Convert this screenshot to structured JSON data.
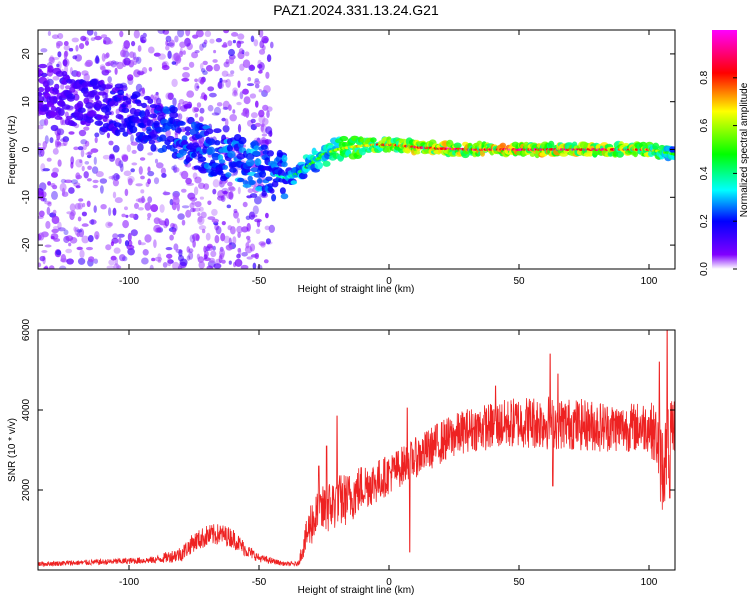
{
  "title": "PAZ1.2024.331.13.24.G21",
  "chart_data": [
    {
      "type": "heatmap",
      "xlabel": "Height of straight line (km)",
      "ylabel": "Frequency (Hz)",
      "xlim": [
        -135,
        110
      ],
      "ylim": [
        -25,
        25
      ],
      "x_ticks": [
        -100,
        -50,
        0,
        50,
        100
      ],
      "y_ticks": [
        -20,
        -10,
        0,
        10,
        20
      ],
      "colorbar": {
        "label": "Normalized spectral amplitude",
        "range": [
          0,
          1
        ],
        "ticks": [
          0.0,
          0.2,
          0.4,
          0.6,
          0.8
        ],
        "colors": [
          "#ffffff",
          "#8000ff",
          "#0000ff",
          "#00ffff",
          "#00ff00",
          "#ffff00",
          "#ff0000",
          "#ff00ff"
        ]
      },
      "ridge": {
        "x": [
          -135,
          -120,
          -100,
          -90,
          -80,
          -70,
          -60,
          -50,
          -45,
          -40,
          -35,
          -30,
          -25,
          -20,
          -15,
          -10,
          -5,
          0,
          5,
          10,
          20,
          30,
          40,
          50,
          60,
          70,
          80,
          90,
          100,
          105,
          110
        ],
        "y": [
          13,
          10,
          8,
          5,
          3,
          0,
          -2,
          -4,
          -5,
          -6,
          -5,
          -3,
          -1,
          0,
          0.5,
          0.8,
          1,
          1,
          0.8,
          0.5,
          0.2,
          0,
          0,
          0,
          0,
          0,
          0,
          0,
          0,
          -0.5,
          -1
        ],
        "amplitude": [
          0.15,
          0.2,
          0.25,
          0.3,
          0.35,
          0.35,
          0.4,
          0.4,
          0.35,
          0.4,
          0.45,
          0.5,
          0.55,
          0.6,
          0.7,
          0.75,
          0.8,
          0.85,
          0.85,
          0.9,
          0.9,
          0.95,
          0.95,
          0.98,
          0.95,
          0.95,
          0.95,
          0.9,
          0.85,
          0.6,
          0.5
        ]
      },
      "scatter_region": {
        "x_range": [
          -135,
          -45
        ],
        "y_range": [
          -25,
          25
        ]
      }
    },
    {
      "type": "line",
      "xlabel": "Height of straight line (km)",
      "ylabel": "SNR (10 * v/v)",
      "xlim": [
        -135,
        110
      ],
      "ylim": [
        0,
        6000
      ],
      "x_ticks": [
        -100,
        -50,
        0,
        50,
        100
      ],
      "y_ticks": [
        2000,
        4000,
        6000
      ],
      "color": "#ee2222",
      "envelope": {
        "x": [
          -135,
          -110,
          -90,
          -80,
          -75,
          -70,
          -65,
          -60,
          -55,
          -50,
          -40,
          -35,
          -30,
          -25,
          -20,
          -15,
          -10,
          -5,
          0,
          10,
          20,
          30,
          40,
          50,
          60,
          70,
          80,
          90,
          100,
          103,
          105,
          107,
          110
        ],
        "y": [
          150,
          200,
          250,
          400,
          700,
          850,
          900,
          800,
          500,
          300,
          150,
          150,
          1200,
          1500,
          1700,
          1800,
          2100,
          2200,
          2400,
          2800,
          3200,
          3500,
          3600,
          3700,
          3700,
          3650,
          3600,
          3550,
          3600,
          3300,
          2500,
          3000,
          3700
        ]
      },
      "noise": {
        "x": [
          -135,
          -110,
          -90,
          -80,
          -70,
          -60,
          -50,
          -40,
          -35,
          -30,
          -20,
          -10,
          0,
          10,
          20,
          30,
          40,
          50,
          60,
          70,
          80,
          90,
          100,
          103,
          105,
          110
        ],
        "y": [
          60,
          70,
          90,
          200,
          280,
          250,
          100,
          50,
          60,
          600,
          700,
          600,
          500,
          500,
          550,
          550,
          600,
          650,
          700,
          650,
          650,
          600,
          650,
          800,
          1200,
          700
        ]
      },
      "spikes": [
        {
          "x": -20,
          "y": 3850
        },
        {
          "x": -24,
          "y": 3100
        },
        {
          "x": -27,
          "y": 2600
        },
        {
          "x": 7,
          "y": 4050
        },
        {
          "x": 8,
          "y": 450
        },
        {
          "x": 41,
          "y": 4600
        },
        {
          "x": 62,
          "y": 5400
        },
        {
          "x": 65,
          "y": 4900
        },
        {
          "x": 63,
          "y": 2100
        },
        {
          "x": 104,
          "y": 5200
        },
        {
          "x": 107,
          "y": 6000
        },
        {
          "x": 108,
          "y": 1800
        }
      ]
    }
  ]
}
